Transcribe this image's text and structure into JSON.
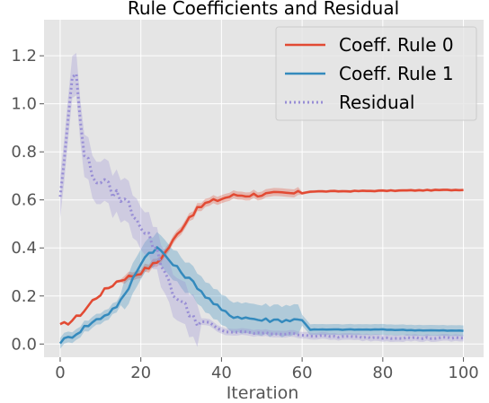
{
  "chart_data": {
    "type": "line",
    "title": "Rule Coefficients and Residual",
    "xlabel": "Iteration",
    "ylabel": "",
    "xlim": [
      -4,
      105
    ],
    "ylim": [
      -0.055,
      1.35
    ],
    "xticks": [
      0,
      20,
      40,
      60,
      80,
      100
    ],
    "yticks": [
      0.0,
      0.2,
      0.4,
      0.6,
      0.8,
      1.0,
      1.2
    ],
    "grid": true,
    "legend_position": "top-right",
    "colors": {
      "background": "#e5e5e5",
      "grid": "#ffffff",
      "rule0": "#e24a33",
      "rule1": "#348abd",
      "residual": "#988ed5"
    },
    "series": [
      {
        "name": "Coeff. Rule 0",
        "style": "solid",
        "key_x": [
          0,
          2,
          4,
          6,
          8,
          10,
          12,
          14,
          16,
          18,
          20,
          22,
          24,
          26,
          28,
          30,
          32,
          34,
          36,
          38,
          40,
          42,
          44,
          46,
          48,
          50,
          52,
          54,
          56,
          58,
          60,
          62,
          70,
          80,
          90,
          100
        ],
        "key_y": [
          0.075,
          0.09,
          0.11,
          0.14,
          0.18,
          0.21,
          0.235,
          0.26,
          0.275,
          0.285,
          0.3,
          0.32,
          0.34,
          0.38,
          0.43,
          0.48,
          0.53,
          0.56,
          0.585,
          0.595,
          0.605,
          0.615,
          0.62,
          0.62,
          0.622,
          0.623,
          0.624,
          0.625,
          0.626,
          0.627,
          0.628,
          0.635,
          0.636,
          0.638,
          0.64,
          0.642
        ],
        "band": 0.012
      },
      {
        "name": "Coeff. Rule 1",
        "style": "solid",
        "key_x": [
          0,
          2,
          4,
          6,
          8,
          10,
          12,
          14,
          16,
          18,
          20,
          22,
          24,
          26,
          28,
          30,
          32,
          34,
          36,
          38,
          40,
          42,
          44,
          46,
          48,
          50,
          52,
          54,
          56,
          58,
          60,
          62,
          70,
          80,
          90,
          100
        ],
        "key_y": [
          0.01,
          0.025,
          0.045,
          0.07,
          0.09,
          0.11,
          0.13,
          0.16,
          0.2,
          0.27,
          0.34,
          0.38,
          0.4,
          0.37,
          0.33,
          0.3,
          0.27,
          0.24,
          0.2,
          0.17,
          0.14,
          0.12,
          0.115,
          0.11,
          0.105,
          0.1,
          0.1,
          0.1,
          0.1,
          0.1,
          0.1,
          0.06,
          0.06,
          0.06,
          0.057,
          0.055
        ],
        "band": 0.045
      },
      {
        "name": "Residual",
        "style": "dotted",
        "key_x": [
          0,
          1,
          2,
          3,
          4,
          5,
          6,
          7,
          8,
          10,
          12,
          14,
          16,
          18,
          20,
          22,
          24,
          26,
          28,
          30,
          32,
          34,
          36,
          38,
          40,
          42,
          44,
          46,
          48,
          50,
          52,
          54,
          56,
          58,
          60,
          62,
          70,
          80,
          90,
          100
        ],
        "key_y": [
          0.62,
          0.75,
          0.95,
          1.1,
          1.12,
          0.95,
          0.8,
          0.75,
          0.7,
          0.68,
          0.65,
          0.62,
          0.6,
          0.55,
          0.5,
          0.45,
          0.38,
          0.3,
          0.22,
          0.17,
          0.13,
          0.1,
          0.08,
          0.065,
          0.055,
          0.05,
          0.05,
          0.048,
          0.046,
          0.045,
          0.044,
          0.043,
          0.042,
          0.041,
          0.04,
          0.035,
          0.03,
          0.027,
          0.025,
          0.025
        ],
        "band": 0.04
      }
    ]
  }
}
